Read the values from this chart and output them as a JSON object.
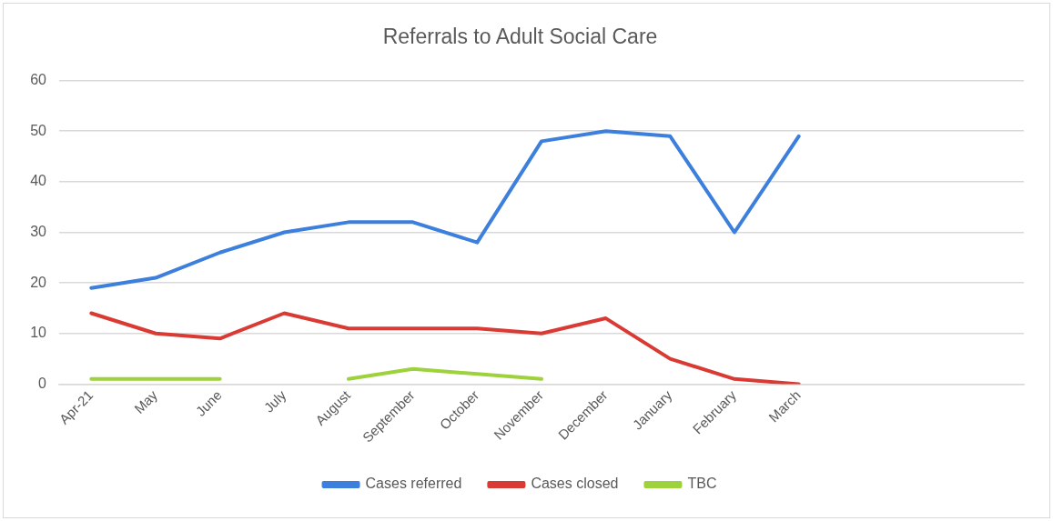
{
  "chart_data": {
    "type": "line",
    "title": "Referrals to Adult Social Care",
    "categories": [
      "Apr-21",
      "May",
      "June",
      "July",
      "August",
      "September",
      "October",
      "November",
      "December",
      "January",
      "February",
      "March",
      null,
      null,
      null
    ],
    "series": [
      {
        "name": "Cases referred",
        "color": "#3c7fdc",
        "values": [
          19,
          21,
          26,
          30,
          32,
          32,
          28,
          48,
          50,
          49,
          30,
          49,
          null,
          null,
          null
        ]
      },
      {
        "name": "Cases closed",
        "color": "#d93b34",
        "values": [
          14,
          10,
          9,
          14,
          11,
          11,
          11,
          10,
          13,
          5,
          1,
          0,
          null,
          null,
          null
        ]
      },
      {
        "name": "TBC",
        "color": "#9dd23c",
        "values": [
          1,
          1,
          1,
          null,
          1,
          3,
          2,
          1,
          null,
          null,
          null,
          null,
          null,
          null,
          null
        ]
      }
    ],
    "ylim": [
      0,
      60
    ],
    "yticks": [
      0,
      10,
      20,
      30,
      40,
      50,
      60
    ],
    "grid": "y",
    "legend": "bottom",
    "marker": "none",
    "line_style": "solid"
  }
}
